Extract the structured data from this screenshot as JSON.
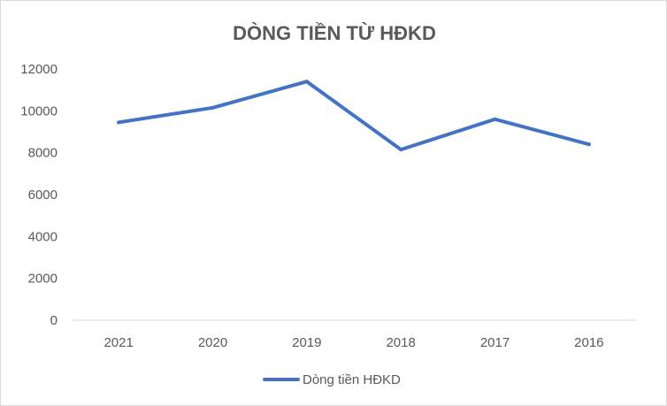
{
  "chart_data": {
    "type": "line",
    "title": "DÒNG TIỀN TỪ HĐKD",
    "xlabel": "",
    "ylabel": "",
    "categories": [
      "2021",
      "2020",
      "2019",
      "2018",
      "2017",
      "2016"
    ],
    "series": [
      {
        "name": "Dòng tiền HĐKD",
        "values": [
          9450,
          10150,
          11400,
          8150,
          9600,
          8400
        ],
        "color": "#4472c4"
      }
    ],
    "ylim": [
      0,
      12000
    ],
    "yticks": [
      "0",
      "2000",
      "4000",
      "6000",
      "8000",
      "10000",
      "12000"
    ],
    "grid": false,
    "legend_position": "bottom"
  }
}
